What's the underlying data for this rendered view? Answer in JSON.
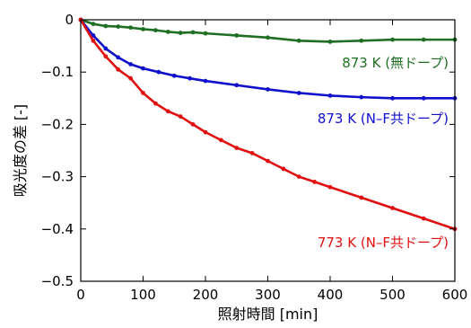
{
  "chart_data": {
    "type": "line",
    "xlabel": "照射時間 [min]",
    "ylabel": "吸光度の差 [-]",
    "xlim": [
      0,
      600
    ],
    "ylim": [
      -0.5,
      0
    ],
    "x_ticks": [
      0,
      100,
      200,
      300,
      400,
      500,
      600
    ],
    "x_tick_labels": [
      "0",
      "100",
      "200",
      "300",
      "400",
      "500",
      "600"
    ],
    "y_ticks": [
      0,
      -0.1,
      -0.2,
      -0.3,
      -0.4,
      -0.5
    ],
    "y_tick_labels": [
      "0",
      "−0.1",
      "−0.2",
      "−0.3",
      "−0.4",
      "−0.5"
    ],
    "grid": false,
    "series": [
      {
        "name": "873 K (無ドープ)",
        "color": "#1e6e23",
        "x": [
          0,
          20,
          40,
          60,
          80,
          100,
          120,
          140,
          160,
          180,
          200,
          250,
          300,
          350,
          400,
          450,
          500,
          550,
          600
        ],
        "y": [
          0,
          -0.008,
          -0.012,
          -0.013,
          -0.015,
          -0.018,
          -0.02,
          -0.023,
          -0.025,
          -0.024,
          -0.026,
          -0.03,
          -0.034,
          -0.04,
          -0.042,
          -0.04,
          -0.038,
          -0.038,
          -0.038
        ]
      },
      {
        "name": "873 K (N–F共ドープ)",
        "color": "#1010cc",
        "x": [
          0,
          20,
          40,
          60,
          80,
          100,
          125,
          150,
          175,
          200,
          250,
          300,
          350,
          400,
          450,
          500,
          550,
          600
        ],
        "y": [
          0,
          -0.03,
          -0.055,
          -0.072,
          -0.085,
          -0.093,
          -0.1,
          -0.107,
          -0.112,
          -0.117,
          -0.125,
          -0.133,
          -0.14,
          -0.145,
          -0.148,
          -0.15,
          -0.15,
          -0.15
        ]
      },
      {
        "name": "773 K (N–F共ドープ)",
        "color": "#e01010",
        "x": [
          0,
          20,
          40,
          60,
          80,
          100,
          120,
          140,
          160,
          180,
          200,
          225,
          250,
          275,
          300,
          325,
          350,
          375,
          400,
          450,
          500,
          550,
          600
        ],
        "y": [
          0,
          -0.04,
          -0.07,
          -0.095,
          -0.112,
          -0.14,
          -0.16,
          -0.175,
          -0.185,
          -0.2,
          -0.215,
          -0.23,
          -0.245,
          -0.255,
          -0.27,
          -0.285,
          -0.3,
          -0.31,
          -0.32,
          -0.34,
          -0.36,
          -0.38,
          -0.4
        ]
      }
    ]
  }
}
